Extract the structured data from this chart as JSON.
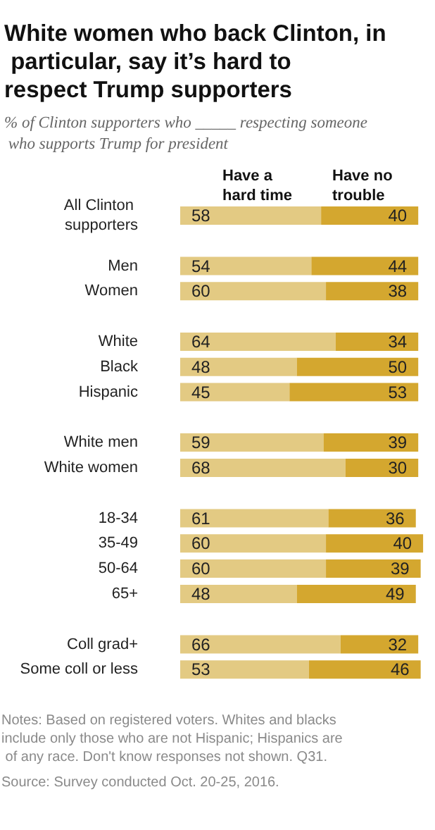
{
  "chart_data": {
    "type": "bar",
    "orientation": "horizontal",
    "title": "White women who back Clinton, in particular, say it’s hard to respect Trump supporters",
    "subtitle": "% of Clinton supporters who _____ respecting someone who supports Trump for president",
    "categories": [
      "All Clinton supporters",
      null,
      "Men",
      "Women",
      null,
      "White",
      "Black",
      "Hispanic",
      null,
      "White men",
      "White women",
      null,
      "18-34",
      "35-49",
      "50-64",
      "65+",
      null,
      "Coll grad+",
      "Some coll or less"
    ],
    "series": [
      {
        "name": "Have a hard time",
        "color": "#e3ca83",
        "values": [
          58,
          null,
          54,
          60,
          null,
          64,
          48,
          45,
          null,
          59,
          68,
          null,
          61,
          60,
          60,
          48,
          null,
          66,
          53
        ]
      },
      {
        "name": "Have no trouble",
        "color": "#d4a72f",
        "values": [
          40,
          null,
          44,
          38,
          null,
          34,
          50,
          53,
          null,
          39,
          30,
          null,
          36,
          40,
          39,
          49,
          null,
          32,
          46
        ]
      }
    ],
    "data_labels": true,
    "stacked": true,
    "annotations": [
      "Notes: Based on registered voters. Whites and blacks include only those who are not Hispanic; Hispanics are of any race. Don't know responses not shown. Q31.",
      "Source: Survey conducted Oct. 20-25, 2016."
    ]
  }
}
